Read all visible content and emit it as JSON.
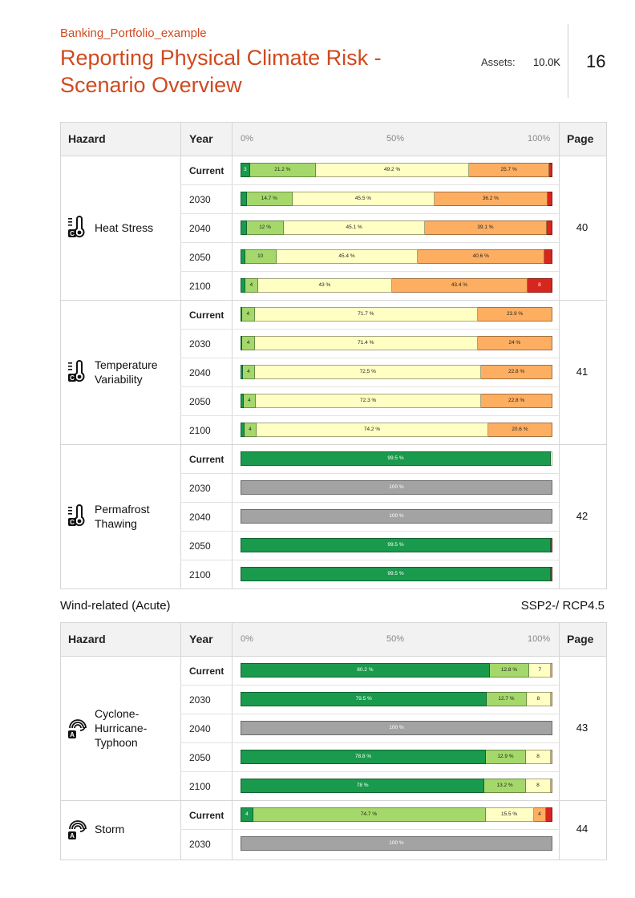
{
  "header": {
    "portfolio": "Banking_Portfolio_example",
    "title": "Reporting Physical Climate Risk - Scenario Overview",
    "assets_label": "Assets:",
    "assets_value": "10.0K",
    "page_number": "16"
  },
  "colors": {
    "title": "#d04a1e",
    "very_low": "#1a9a4c",
    "low": "#a5d86a",
    "medium": "#ffffc4",
    "high": "#fdae61",
    "very_high": "#d7261e",
    "no_data": "#a3a3a3"
  },
  "table_header": {
    "hazard": "Hazard",
    "year": "Year",
    "pct_0": "0%",
    "pct_50": "50%",
    "pct_100": "100%",
    "page": "Page"
  },
  "section2": {
    "title": "Wind-related (Acute)",
    "scenario": "SSP2-/ RCP4.5"
  },
  "tables": [
    {
      "hazards": [
        {
          "name": "Heat Stress",
          "icon": "thermometer-c-icon",
          "page": "40",
          "rows": [
            {
              "year": "Current",
              "segments": [
                {
                  "c": 0,
                  "v": 3,
                  "l": "3"
                },
                {
                  "c": 1,
                  "v": 21.2,
                  "l": "21.2 %"
                },
                {
                  "c": 2,
                  "v": 49.2,
                  "l": "49.2 %"
                },
                {
                  "c": 3,
                  "v": 25.7,
                  "l": "25.7 %"
                },
                {
                  "c": 4,
                  "v": 1.0,
                  "l": ""
                }
              ]
            },
            {
              "year": "2030",
              "segments": [
                {
                  "c": 0,
                  "v": 2.0,
                  "l": ""
                },
                {
                  "c": 1,
                  "v": 14.7,
                  "l": "14.7 %"
                },
                {
                  "c": 2,
                  "v": 45.5,
                  "l": "45.5 %"
                },
                {
                  "c": 3,
                  "v": 36.2,
                  "l": "36.2 %"
                },
                {
                  "c": 4,
                  "v": 1.6,
                  "l": ""
                }
              ]
            },
            {
              "year": "2040",
              "segments": [
                {
                  "c": 0,
                  "v": 2.0,
                  "l": ""
                },
                {
                  "c": 1,
                  "v": 12,
                  "l": "12 %"
                },
                {
                  "c": 2,
                  "v": 45.1,
                  "l": "45.1 %"
                },
                {
                  "c": 3,
                  "v": 39.1,
                  "l": "39.1 %"
                },
                {
                  "c": 4,
                  "v": 1.8,
                  "l": ""
                }
              ]
            },
            {
              "year": "2050",
              "segments": [
                {
                  "c": 0,
                  "v": 1.5,
                  "l": ""
                },
                {
                  "c": 1,
                  "v": 10,
                  "l": "10"
                },
                {
                  "c": 2,
                  "v": 45.4,
                  "l": "45.4 %"
                },
                {
                  "c": 3,
                  "v": 40.6,
                  "l": "40.6 %"
                },
                {
                  "c": 4,
                  "v": 2.5,
                  "l": ""
                }
              ]
            },
            {
              "year": "2100",
              "segments": [
                {
                  "c": 0,
                  "v": 1.6,
                  "l": ""
                },
                {
                  "c": 1,
                  "v": 4,
                  "l": "4"
                },
                {
                  "c": 2,
                  "v": 43,
                  "l": "43 %"
                },
                {
                  "c": 3,
                  "v": 43.4,
                  "l": "43.4 %"
                },
                {
                  "c": 4,
                  "v": 8,
                  "l": "8"
                }
              ]
            }
          ]
        },
        {
          "name": "Temperature Variability",
          "icon": "thermometer-c-icon",
          "page": "41",
          "rows": [
            {
              "year": "Current",
              "segments": [
                {
                  "c": 0,
                  "v": 0.4,
                  "l": ""
                },
                {
                  "c": 1,
                  "v": 4,
                  "l": "4"
                },
                {
                  "c": 2,
                  "v": 71.7,
                  "l": "71.7 %"
                },
                {
                  "c": 3,
                  "v": 23.9,
                  "l": "23.9 %"
                }
              ]
            },
            {
              "year": "2030",
              "segments": [
                {
                  "c": 0,
                  "v": 0.6,
                  "l": ""
                },
                {
                  "c": 1,
                  "v": 4,
                  "l": "4"
                },
                {
                  "c": 2,
                  "v": 71.4,
                  "l": "71.4 %"
                },
                {
                  "c": 3,
                  "v": 24,
                  "l": "24 %"
                }
              ]
            },
            {
              "year": "2040",
              "segments": [
                {
                  "c": 0,
                  "v": 0.7,
                  "l": ""
                },
                {
                  "c": 1,
                  "v": 4,
                  "l": "4"
                },
                {
                  "c": 2,
                  "v": 72.5,
                  "l": "72.5 %"
                },
                {
                  "c": 3,
                  "v": 22.8,
                  "l": "22.8 %"
                }
              ]
            },
            {
              "year": "2050",
              "segments": [
                {
                  "c": 0,
                  "v": 0.9,
                  "l": ""
                },
                {
                  "c": 1,
                  "v": 4,
                  "l": "4"
                },
                {
                  "c": 2,
                  "v": 72.3,
                  "l": "72.3 %"
                },
                {
                  "c": 3,
                  "v": 22.8,
                  "l": "22.8 %"
                }
              ]
            },
            {
              "year": "2100",
              "segments": [
                {
                  "c": 0,
                  "v": 1.2,
                  "l": ""
                },
                {
                  "c": 1,
                  "v": 4,
                  "l": "4"
                },
                {
                  "c": 2,
                  "v": 74.2,
                  "l": "74.2 %"
                },
                {
                  "c": 3,
                  "v": 20.6,
                  "l": "20.6 %"
                }
              ]
            }
          ]
        },
        {
          "name": "Permafrost Thawing",
          "icon": "thermometer-c-icon",
          "page": "42",
          "rows": [
            {
              "year": "Current",
              "segments": [
                {
                  "c": 0,
                  "v": 99.5,
                  "l": "99.5 %"
                },
                {
                  "c": 2,
                  "v": 0.5,
                  "l": ""
                }
              ]
            },
            {
              "year": "2030",
              "segments": [
                {
                  "c": 5,
                  "v": 100,
                  "l": "100 %"
                }
              ]
            },
            {
              "year": "2040",
              "segments": [
                {
                  "c": 5,
                  "v": 100,
                  "l": "100 %"
                }
              ]
            },
            {
              "year": "2050",
              "segments": [
                {
                  "c": 0,
                  "v": 99.5,
                  "l": "99.5 %"
                },
                {
                  "c": 4,
                  "v": 0.5,
                  "l": ""
                }
              ]
            },
            {
              "year": "2100",
              "segments": [
                {
                  "c": 0,
                  "v": 99.5,
                  "l": "99.5 %"
                },
                {
                  "c": 4,
                  "v": 0.5,
                  "l": ""
                }
              ]
            }
          ]
        }
      ]
    },
    {
      "hazards": [
        {
          "name": "Cyclone-Hurricane-Typhoon",
          "icon": "wind-a-icon",
          "page": "43",
          "rows": [
            {
              "year": "Current",
              "segments": [
                {
                  "c": 0,
                  "v": 80.2,
                  "l": "80.2 %"
                },
                {
                  "c": 1,
                  "v": 12.8,
                  "l": "12.8 %"
                },
                {
                  "c": 2,
                  "v": 7,
                  "l": "7"
                },
                {
                  "c": 3,
                  "v": 0.4,
                  "l": ""
                }
              ]
            },
            {
              "year": "2030",
              "segments": [
                {
                  "c": 0,
                  "v": 79.5,
                  "l": "79.5 %"
                },
                {
                  "c": 1,
                  "v": 12.7,
                  "l": "12.7 %"
                },
                {
                  "c": 2,
                  "v": 8,
                  "l": "8"
                },
                {
                  "c": 3,
                  "v": 0.4,
                  "l": ""
                }
              ]
            },
            {
              "year": "2040",
              "segments": [
                {
                  "c": 5,
                  "v": 100,
                  "l": "100 %"
                }
              ]
            },
            {
              "year": "2050",
              "segments": [
                {
                  "c": 0,
                  "v": 78.8,
                  "l": "78.8 %"
                },
                {
                  "c": 1,
                  "v": 12.9,
                  "l": "12.9 %"
                },
                {
                  "c": 2,
                  "v": 8,
                  "l": "8"
                },
                {
                  "c": 3,
                  "v": 0.5,
                  "l": ""
                }
              ]
            },
            {
              "year": "2100",
              "segments": [
                {
                  "c": 0,
                  "v": 78,
                  "l": "78 %"
                },
                {
                  "c": 1,
                  "v": 13.2,
                  "l": "13.2 %"
                },
                {
                  "c": 2,
                  "v": 8,
                  "l": "8"
                },
                {
                  "c": 3,
                  "v": 0.5,
                  "l": ""
                }
              ]
            }
          ]
        },
        {
          "name": "Storm",
          "icon": "wind-a-icon",
          "page": "44",
          "rows": [
            {
              "year": "Current",
              "segments": [
                {
                  "c": 0,
                  "v": 4,
                  "l": "4"
                },
                {
                  "c": 1,
                  "v": 74.7,
                  "l": "74.7 %"
                },
                {
                  "c": 2,
                  "v": 15.5,
                  "l": "15.5 %"
                },
                {
                  "c": 3,
                  "v": 4,
                  "l": "4"
                },
                {
                  "c": 4,
                  "v": 2,
                  "l": ""
                }
              ]
            },
            {
              "year": "2030",
              "segments": [
                {
                  "c": 5,
                  "v": 100,
                  "l": "100 %"
                }
              ]
            }
          ]
        }
      ]
    }
  ]
}
